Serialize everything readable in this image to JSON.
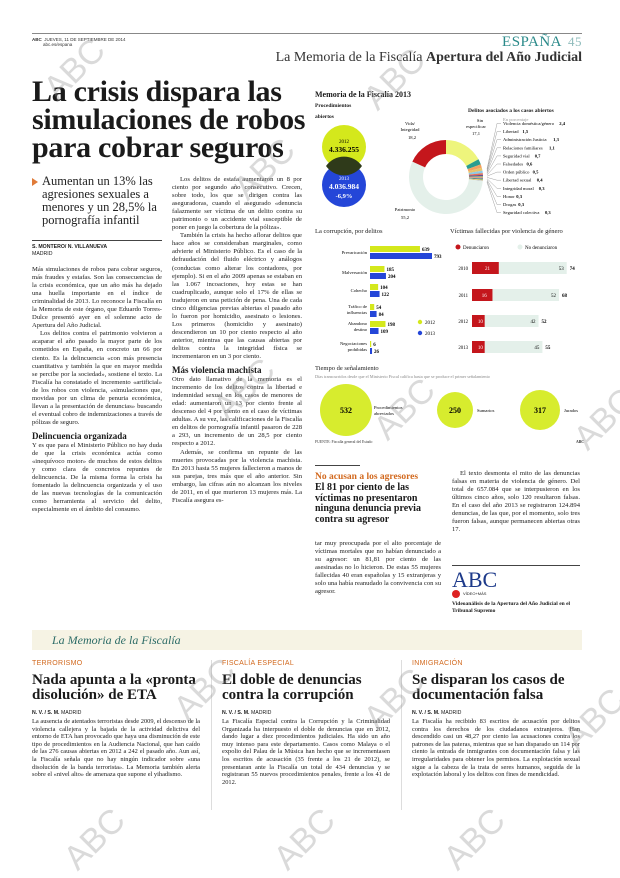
{
  "header": {
    "brand": "ABC",
    "date": "JUEVES, 11 DE SEPTIEMBRE DE 2014",
    "site": "abc.es/espana",
    "section": "ESPAÑA",
    "page": "45",
    "kicker_a": "La Memoria de la Fiscalía",
    "kicker_b": "Apertura del Año Judicial"
  },
  "article": {
    "title": "La crisis dispara las simulaciones de robos para cobrar seguros",
    "subtitle": "Aumentan un 13% las agresiones sexuales a menores y un 28,5% la pornografía infantil",
    "byline": "S. MONTERO/ N. VILLANUEVA",
    "location": "MADRID",
    "col1": [
      "Más simulaciones de robos para cobrar seguros, más fraudes y estafas. Son las consecuencias de la crisis económica, que un año más ha dejado una huella importante en el índice de criminalidad de 2013. Lo reconoce la Fiscalía en la Memoria de este órgano, que Eduardo Torres-Dulce presentó ayer en el solemne acto de Apertura del Año Judicial.",
      "Los delitos contra el patrimonio volvieron a acaparar el año pasado la mayor parte de los cometidos en España, en concreto un 66 por ciento. Es la delincuencia «con más presencia cuantitativa y también la que en mayor medida se percibe por la sociedad», sostiene el texto. La Fiscalía ha constatado el incremento «artificial» de los robos con violencia, «simulaciones que, movidas por un clima de penuria económica, llevan a la presentación de denuncias» buscando el eventual cobro de indemnizaciones a través de pólizas de seguro."
    ],
    "col1_heading": "Delincuencia organizada",
    "col1b": "Y es que para el Ministerio Público no hay duda de que la crisis económica actúa como «inequívoco motor» de muchos de estos delitos y como clara de concretos repuntes de delincuencia. De la misma forma la crisis ha fomentado la delincuencia organizada y el uso de las nuevas tecnologías de la comunicación como herramienta al servicio del delito, especialmente en el ámbito del consumo.",
    "col2": [
      "Los delitos de estafa aumentaron un 8 por ciento por segundo año consecutivo. Crecen, sobre todo, los que se dirigen contra las aseguradoras, cuando el asegurado «denuncia falazmente ser víctima de un delito contra su patrimonio o un accidente vial susceptible de poner en juego la cobertura de la póliza».",
      "También la crisis ha hecho aflorar delitos que hace años se consideraban marginales, como advierte el Ministerio Público. Es el caso de la defraudación del fluido eléctrico y análogos (conductas como alterar los contadores, por ejemplo). Si en el año 2009 apenas se estaban en las 1.067 incoaciones, hoy estas se han cuadruplicado, aunque solo el 17% de ellas se tradujeron en una petición de pena. Una de cada cinco diligencias previas abiertas el pasado año lo fueron por homicidio, asesinato o lesiones. Los primeros (homicidio y asesinato) descendieron un 10 por ciento respecto al año anterior, mientras que las causas abiertas por delitos contra la integridad física se incrementaron en un 3 por ciento."
    ],
    "col2_heading": "Más violencia machista",
    "col2b": [
      "Otro dato llamativo de la memoria es el incremento de los delitos contra la libertad e indemnidad sexual en los casos de menores de edad: aumentaron un 13 por ciento frente al descenso del 4 por ciento en el caso de víctimas adultas. A su vez, las calificaciones de la Fiscalía en delitos de pornografía infantil pasaron de 228 a 293, un incremento de un 28,5 por ciento respecto a 2012.",
      "Además, se confirma un repunte de las muertes provocadas por la violencia machista. En 2013 hasta 55 mujeres fallecieron a manos de sus parejas, tres más que el año anterior. Sin embargo, las cifras aún no alcanzan los niveles de 2011, en el que murieron 13 mujeres más. La Fiscalía asegura es-"
    ],
    "box_kicker": "No acusan a los agresores",
    "box_title": "El 81 por ciento de las víctimas no presentaron ninguna denuncia previa contra su agresor",
    "col3": "tar muy preocupada por el alto porcentaje de víctimas mortales que no habían denunciado a su agresor: un 81,81 por ciento de las asesinadas no lo hicieron. De estas 55 mujeres fallecidas 40 eran españolas y 15 extranjeras y solo una había reanudado la convivencia con su agresor.",
    "col4": "El texto desmonta el mito de las denuncias falsas en materia de violencia de género. Del total de 657.084 que se interpusieron en los últimos cinco años, solo 120 resultaron falsas. En el caso del año 2013 se registraron 124.894 denuncias, de las que, por el momento, solo tres fueron falsas, aunque permanecen abiertas otras 17.",
    "promo_logo": "ABC",
    "promo_badge": "VÍDEO+MÁS",
    "promo_text": "Videoanálisis de la Apertura del Año Judicial en el Tribunal Supremo"
  },
  "infographic": {
    "title": "Memoria de la Fiscalía 2013",
    "source": "FUENTE: Fiscalía general del Estado",
    "credit": "ABC",
    "colors": {
      "y2012": "#d4e81c",
      "y2013": "#2446d8",
      "red": "#c4161c",
      "mint": "#e4f0ea",
      "green": "#d7ec2e"
    }
  },
  "chart_data": [
    {
      "type": "venn",
      "title": "Procedimientos abiertos",
      "items": [
        {
          "label": "2012",
          "value": "4.336.255"
        },
        {
          "label": "2013",
          "value": "4.036.984",
          "change": "-6,9%"
        }
      ]
    },
    {
      "type": "pie",
      "title": "Delitos asociados a los casos abiertos",
      "subtitle": "En porcentaje",
      "big": [
        {
          "name": "Sin especificar",
          "value": 17.1,
          "label": "17,1"
        },
        {
          "name": "Patrimonio",
          "value": 55.2,
          "label": "55,2"
        },
        {
          "name": "Vida/ Integridad",
          "value": 18.2,
          "label": "18,2"
        }
      ],
      "small": [
        {
          "name": "Violencia doméstica/género",
          "value": 2.4,
          "label": "2,4"
        },
        {
          "name": "Libertad",
          "value": 1.5,
          "label": "1,5"
        },
        {
          "name": "Administración Justicia",
          "value": 1.3,
          "label": "1,3"
        },
        {
          "name": "Relaciones familiares",
          "value": 1.1,
          "label": "1,1"
        },
        {
          "name": "Seguridad vial",
          "value": 0.7,
          "label": "0,7"
        },
        {
          "name": "Falsedades",
          "value": 0.6,
          "label": "0,6"
        },
        {
          "name": "Orden público",
          "value": 0.5,
          "label": "0,5"
        },
        {
          "name": "Libertad sexual",
          "value": 0.4,
          "label": "0,4"
        },
        {
          "name": "Integridad moral",
          "value": 0.3,
          "label": "0,3"
        },
        {
          "name": "Honor",
          "value": 0.3,
          "label": "0,3"
        },
        {
          "name": "Drogas",
          "value": 0.3,
          "label": "0,3"
        },
        {
          "name": "Seguridad colectiva",
          "value": 0.3,
          "label": "0,3"
        }
      ]
    },
    {
      "type": "bar",
      "title": "La corrupción, por delitos",
      "categories": [
        "Prevaricación",
        "Malversación",
        "Cohecho",
        "Tráfico de influencias",
        "Abandono destino",
        "Negociaciones prohibidas"
      ],
      "series": [
        {
          "name": "2012",
          "values": [
            639,
            185,
            104,
            54,
            198,
            6
          ]
        },
        {
          "name": "2013",
          "values": [
            793,
            204,
            122,
            84,
            109,
            26
          ]
        }
      ]
    },
    {
      "type": "bar",
      "stacked": true,
      "title": "Víctimas fallecidas por violencia de género",
      "categories": [
        "2010",
        "2011",
        "2012",
        "2013"
      ],
      "series": [
        {
          "name": "Denunciaron",
          "values": [
            21,
            16,
            10,
            10
          ]
        },
        {
          "name": "No denunciaron",
          "values": [
            53,
            52,
            42,
            45
          ]
        }
      ],
      "totals": [
        74,
        68,
        52,
        55
      ]
    },
    {
      "type": "bubble",
      "title": "Tiempo de señalamiento",
      "subtitle": "Días transcurridos desde que el Ministerio Fiscal califica hasta que se produce el primer señalamiento",
      "items": [
        {
          "name": "Procedimientos abreviados",
          "value": 532
        },
        {
          "name": "Sumarios",
          "value": 250
        },
        {
          "name": "Jurados",
          "value": 317
        }
      ]
    }
  ],
  "band": {
    "title": "La Memoria de la Fiscalía"
  },
  "bottom": [
    {
      "category": "TERRORISMO",
      "title": "Nada apunta a la «pronta disolución» de ETA",
      "byline": "N. V. / S. M.",
      "location": "MADRID",
      "text": "La ausencia de atentados terroristas desde 2009, el descenso de la violencia callejera y la bajada de la actividad delictiva del entorno de ETA han provocado que haya una disminución de este tipo de procedimientos en la Audiencia Nacional, que han caído de las 276 causas abiertas en 2012 a 242 el pasado año. Aun así, la Fiscalía señala que no hay ningún indicador sobre «una disolución de la banda terrorista». La Memoria también alerta sobre el «nivel alto» de amenaza que supone el yihadismo."
    },
    {
      "category": "FISCALÍA ESPECIAL",
      "title": "El doble de denuncias contra la corrupción",
      "byline": "N. V. / S. M.",
      "location": "MADRID",
      "text": "La Fiscalía Especial contra la Corrupción y la Criminalidad Organizada ha interpuesto el doble de denuncias que en 2012, dando lugar a diez procedimientos judiciales. Ha sido un año muy intenso para este departamento. Casos como Malaya o el expolio del Palau de la Música han hecho que se incrementasen los escritos de acusación (35 frente a los 21 de 2012), se presentaran ante la Fiscalía un total de 434 denuncias y se registraran 55 nuevos procedimientos penales, frente a los 41 de 2012."
    },
    {
      "category": "INMIGRACIÓN",
      "title": "Se disparan los casos de documentación falsa",
      "byline": "N. V. / S. M.",
      "location": "MADRID",
      "text": "La Fiscalía ha recibido 83 escritos de acusación por delitos contra los derechos de los ciudadanos extranjeros. Han descendido casi un 48,27 por ciento las acusaciones contra los patrones de las pateras, mientras que se han disparado un 114 por ciento la entrada de inmigrantes con documentación falsa y las irregularidades para obtener los permisos. La explotación sexual sigue a la cabeza de la trata de seres humanos, seguida de la explotación laboral y los delitos con fines de mendicidad."
    }
  ],
  "watermark": "ABC"
}
